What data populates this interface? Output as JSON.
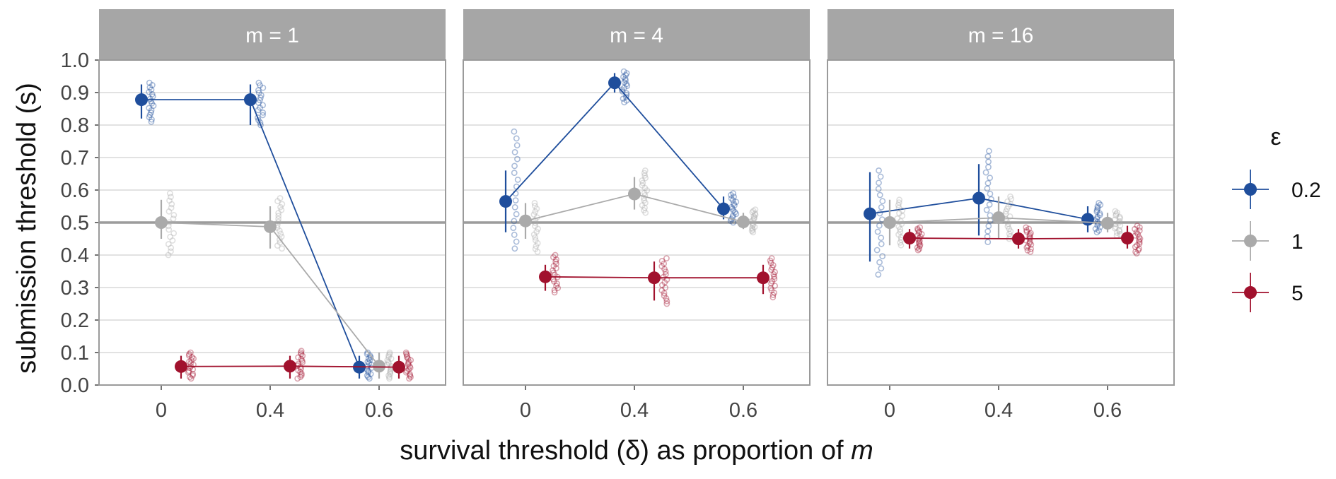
{
  "chart_data": {
    "type": "scatter",
    "ylabel": "submission threshold (s)",
    "xlabel_prefix": "survival threshold (δ) as proportion of ",
    "xlabel_var": "m",
    "ylim": [
      0,
      1.0
    ],
    "y_ticks": [
      "0.0",
      "0.1",
      "0.2",
      "0.3",
      "0.4",
      "0.5",
      "0.6",
      "0.7",
      "0.8",
      "0.9",
      "1.0"
    ],
    "x_categories": [
      "0",
      "0.4",
      "0.6"
    ],
    "reference_line": 0.5,
    "legend": {
      "title": "ε",
      "entries": [
        {
          "label": "0.2",
          "color": "#1f4e9c"
        },
        {
          "label": "1",
          "color": "#aaaaaa"
        },
        {
          "label": "5",
          "color": "#a1112d"
        }
      ]
    },
    "panels": [
      {
        "title": "m = 1",
        "series": [
          {
            "name": "0.2",
            "color": "#1f4e9c",
            "means": [
              0.878,
              0.878,
              0.055
            ],
            "ci": [
              [
                0.82,
                0.925
              ],
              [
                0.8,
                0.925
              ],
              [
                0.02,
                0.09
              ]
            ],
            "raw_range": [
              [
                0.81,
                0.93
              ],
              [
                0.8,
                0.93
              ],
              [
                0.02,
                0.1
              ]
            ]
          },
          {
            "name": "1",
            "color": "#aaaaaa",
            "means": [
              0.5,
              0.487,
              0.058
            ],
            "ci": [
              [
                0.45,
                0.57
              ],
              [
                0.42,
                0.55
              ],
              [
                0.02,
                0.1
              ]
            ],
            "raw_range": [
              [
                0.4,
                0.59
              ],
              [
                0.42,
                0.575
              ],
              [
                0.02,
                0.1
              ]
            ]
          },
          {
            "name": "5",
            "color": "#a1112d",
            "means": [
              0.057,
              0.058,
              0.055
            ],
            "ci": [
              [
                0.02,
                0.09
              ],
              [
                0.02,
                0.09
              ],
              [
                0.02,
                0.09
              ]
            ],
            "raw_range": [
              [
                0.02,
                0.1
              ],
              [
                0.02,
                0.105
              ],
              [
                0.02,
                0.1
              ]
            ]
          }
        ]
      },
      {
        "title": "m = 4",
        "series": [
          {
            "name": "0.2",
            "color": "#1f4e9c",
            "means": [
              0.565,
              0.93,
              0.542
            ],
            "ci": [
              [
                0.47,
                0.66
              ],
              [
                0.9,
                0.96
              ],
              [
                0.51,
                0.58
              ]
            ],
            "raw_range": [
              [
                0.42,
                0.78
              ],
              [
                0.87,
                0.965
              ],
              [
                0.5,
                0.59
              ]
            ]
          },
          {
            "name": "1",
            "color": "#aaaaaa",
            "means": [
              0.505,
              0.588,
              0.502
            ],
            "ci": [
              [
                0.45,
                0.56
              ],
              [
                0.54,
                0.64
              ],
              [
                0.48,
                0.53
              ]
            ],
            "raw_range": [
              [
                0.41,
                0.56
              ],
              [
                0.53,
                0.66
              ],
              [
                0.47,
                0.54
              ]
            ]
          },
          {
            "name": "5",
            "color": "#a1112d",
            "means": [
              0.333,
              0.33,
              0.33
            ],
            "ci": [
              [
                0.29,
                0.37
              ],
              [
                0.26,
                0.38
              ],
              [
                0.28,
                0.37
              ]
            ],
            "raw_range": [
              [
                0.285,
                0.4
              ],
              [
                0.25,
                0.39
              ],
              [
                0.27,
                0.39
              ]
            ]
          }
        ]
      },
      {
        "title": "m = 16",
        "series": [
          {
            "name": "0.2",
            "color": "#1f4e9c",
            "means": [
              0.527,
              0.575,
              0.51
            ],
            "ci": [
              [
                0.38,
                0.655
              ],
              [
                0.46,
                0.68
              ],
              [
                0.47,
                0.55
              ]
            ],
            "raw_range": [
              [
                0.34,
                0.66
              ],
              [
                0.44,
                0.72
              ],
              [
                0.47,
                0.56
              ]
            ]
          },
          {
            "name": "1",
            "color": "#aaaaaa",
            "means": [
              0.5,
              0.515,
              0.498
            ],
            "ci": [
              [
                0.43,
                0.57
              ],
              [
                0.45,
                0.58
              ],
              [
                0.47,
                0.53
              ]
            ],
            "raw_range": [
              [
                0.43,
                0.57
              ],
              [
                0.45,
                0.58
              ],
              [
                0.46,
                0.535
              ]
            ]
          },
          {
            "name": "5",
            "color": "#a1112d",
            "means": [
              0.452,
              0.45,
              0.452
            ],
            "ci": [
              [
                0.42,
                0.48
              ],
              [
                0.42,
                0.48
              ],
              [
                0.42,
                0.49
              ]
            ],
            "raw_range": [
              [
                0.415,
                0.485
              ],
              [
                0.41,
                0.485
              ],
              [
                0.405,
                0.49
              ]
            ]
          }
        ]
      }
    ]
  }
}
